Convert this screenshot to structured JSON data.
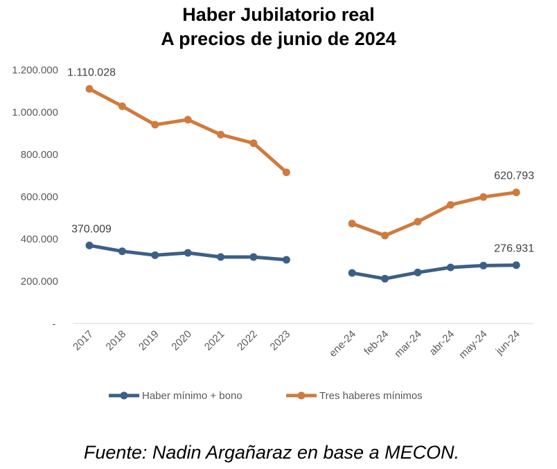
{
  "chart_data": {
    "type": "line",
    "title": "Haber Jubilatorio real",
    "subtitle": "A precios de junio de 2024",
    "categories": [
      "2017",
      "2018",
      "2019",
      "2020",
      "2021",
      "2022",
      "2023",
      "ene-24",
      "feb-24",
      "mar-24",
      "abr-24",
      "may-24",
      "jun-24"
    ],
    "ylim": [
      0,
      1200000
    ],
    "yticks": [
      "-",
      "200.000",
      "400.000",
      "600.000",
      "800.000",
      "1.000.000",
      "1.200.000"
    ],
    "grid": false,
    "legend": "bottom",
    "series": [
      {
        "name": "Haber mínimo + bono",
        "color": "#3d5f87",
        "values": [
          370009,
          342500,
          324100,
          334900,
          315300,
          315300,
          302200,
          240000,
          212800,
          242300,
          266200,
          275000,
          276931
        ],
        "labels": [
          {
            "index": 0,
            "text": "370.009"
          },
          {
            "index": 12,
            "text": "276.931"
          }
        ]
      },
      {
        "name": "Tres haberes mínimos",
        "color": "#d07a3e",
        "values": [
          1110028,
          1028000,
          940600,
          964500,
          893800,
          853200,
          715700,
          473400,
          416800,
          482300,
          561800,
          599100,
          620793
        ],
        "labels": [
          {
            "index": 0,
            "text": "1.110.028"
          },
          {
            "index": 12,
            "text": "620.793"
          }
        ]
      }
    ]
  },
  "source": "Fuente: Nadin Argañaraz en base a MECON."
}
